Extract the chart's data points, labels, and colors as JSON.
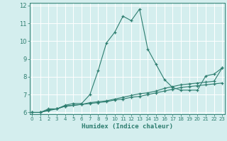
{
  "title": "",
  "xlabel": "Humidex (Indice chaleur)",
  "background_color": "#d4eeee",
  "grid_color": "#b8dada",
  "line_color": "#2d7d6f",
  "x_min": 0,
  "x_max": 23,
  "y_min": 6,
  "y_max": 12,
  "x_ticks": [
    0,
    1,
    2,
    3,
    4,
    5,
    6,
    7,
    8,
    9,
    10,
    11,
    12,
    13,
    14,
    15,
    16,
    17,
    18,
    19,
    20,
    21,
    22,
    23
  ],
  "y_ticks": [
    6,
    7,
    8,
    9,
    10,
    11,
    12
  ],
  "line1_x": [
    0,
    1,
    2,
    3,
    4,
    5,
    6,
    7,
    8,
    9,
    10,
    11,
    12,
    13,
    14,
    15,
    16,
    17,
    18,
    19,
    20,
    21,
    22,
    23
  ],
  "line1_y": [
    6.0,
    6.0,
    6.2,
    6.2,
    6.4,
    6.5,
    6.5,
    7.0,
    8.35,
    9.9,
    10.5,
    11.4,
    11.15,
    11.8,
    9.55,
    8.7,
    7.85,
    7.4,
    7.25,
    7.25,
    7.25,
    8.05,
    8.15,
    8.5
  ],
  "line2_x": [
    0,
    1,
    2,
    3,
    4,
    5,
    6,
    7,
    8,
    9,
    10,
    11,
    12,
    13,
    14,
    15,
    16,
    17,
    18,
    19,
    20,
    21,
    22,
    23
  ],
  "line2_y": [
    6.0,
    6.0,
    6.15,
    6.2,
    6.35,
    6.4,
    6.45,
    6.55,
    6.6,
    6.65,
    6.75,
    6.85,
    6.95,
    7.05,
    7.1,
    7.2,
    7.35,
    7.45,
    7.55,
    7.6,
    7.65,
    7.7,
    7.75,
    8.5
  ],
  "line3_x": [
    0,
    1,
    2,
    3,
    4,
    5,
    6,
    7,
    8,
    9,
    10,
    11,
    12,
    13,
    14,
    15,
    16,
    17,
    18,
    19,
    20,
    21,
    22,
    23
  ],
  "line3_y": [
    6.0,
    6.0,
    6.1,
    6.2,
    6.35,
    6.4,
    6.45,
    6.5,
    6.55,
    6.6,
    6.7,
    6.75,
    6.85,
    6.9,
    7.0,
    7.1,
    7.2,
    7.3,
    7.4,
    7.45,
    7.5,
    7.55,
    7.6,
    7.65
  ]
}
